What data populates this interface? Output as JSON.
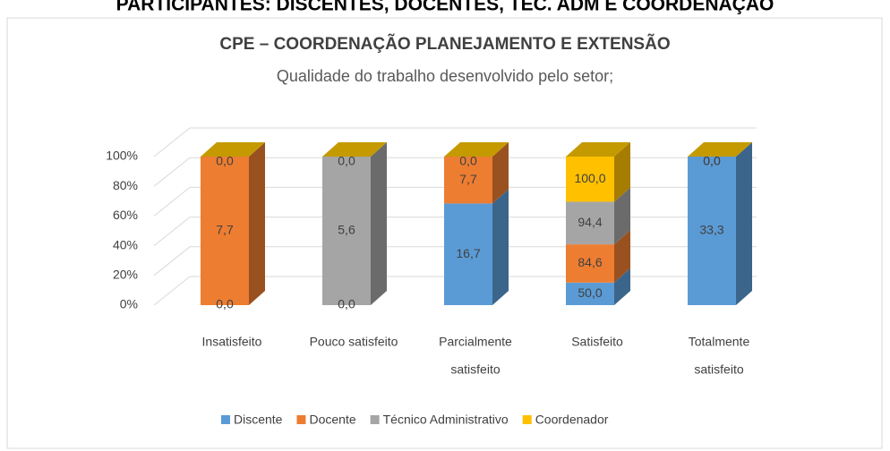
{
  "header": {
    "title": "PARTICIPANTES: DISCENTES, DOCENTES, TEC. ADM E COORDENAÇÃO"
  },
  "chart_data": {
    "type": "bar3d",
    "title": "CPE – COORDENAÇÃO PLANEJAMENTO E EXTENSÃO",
    "subtitle": "Qualidade do trabalho desenvolvido pelo setor;",
    "stacked": "percent",
    "categories": [
      [
        "Insatisfeito"
      ],
      [
        "Pouco satisfeito"
      ],
      [
        "Parcialmente",
        "satisfeito"
      ],
      [
        "Satisfeito"
      ],
      [
        "Totalmente",
        "satisfeito"
      ]
    ],
    "series": [
      {
        "name": "Discente",
        "color": "#5b9bd5",
        "values": [
          0,
          0,
          16.7,
          50,
          33.3
        ],
        "value_labels": [
          "0,0",
          "0,0",
          "16,7",
          "50,0",
          "33,3"
        ]
      },
      {
        "name": "Docente",
        "color": "#ed7d31",
        "values": [
          7.7,
          null,
          7.7,
          84.6,
          0
        ],
        "value_labels": [
          "7,7",
          null,
          "7,7",
          "84,6",
          "0,0"
        ]
      },
      {
        "name": "Técnico Administrativo",
        "color": "#a5a5a5",
        "values": [
          null,
          5.6,
          null,
          94.4,
          null
        ],
        "value_labels": [
          null,
          "5,6",
          null,
          "94,4",
          null
        ]
      },
      {
        "name": "Coordenador",
        "color": "#ffc000",
        "values": [
          0,
          0,
          0,
          100,
          0
        ],
        "value_labels": [
          "0,0",
          "0,0",
          "0,0",
          "100,0",
          "0,0"
        ]
      }
    ],
    "ylim": [
      0,
      100
    ],
    "yticks": [
      {
        "value": 0,
        "label": "0%"
      },
      {
        "value": 20,
        "label": "20%"
      },
      {
        "value": 40,
        "label": "40%"
      },
      {
        "value": 60,
        "label": "60%"
      },
      {
        "value": 80,
        "label": "80%"
      },
      {
        "value": 100,
        "label": "100%"
      }
    ],
    "grid": true,
    "legend": "bottom"
  }
}
